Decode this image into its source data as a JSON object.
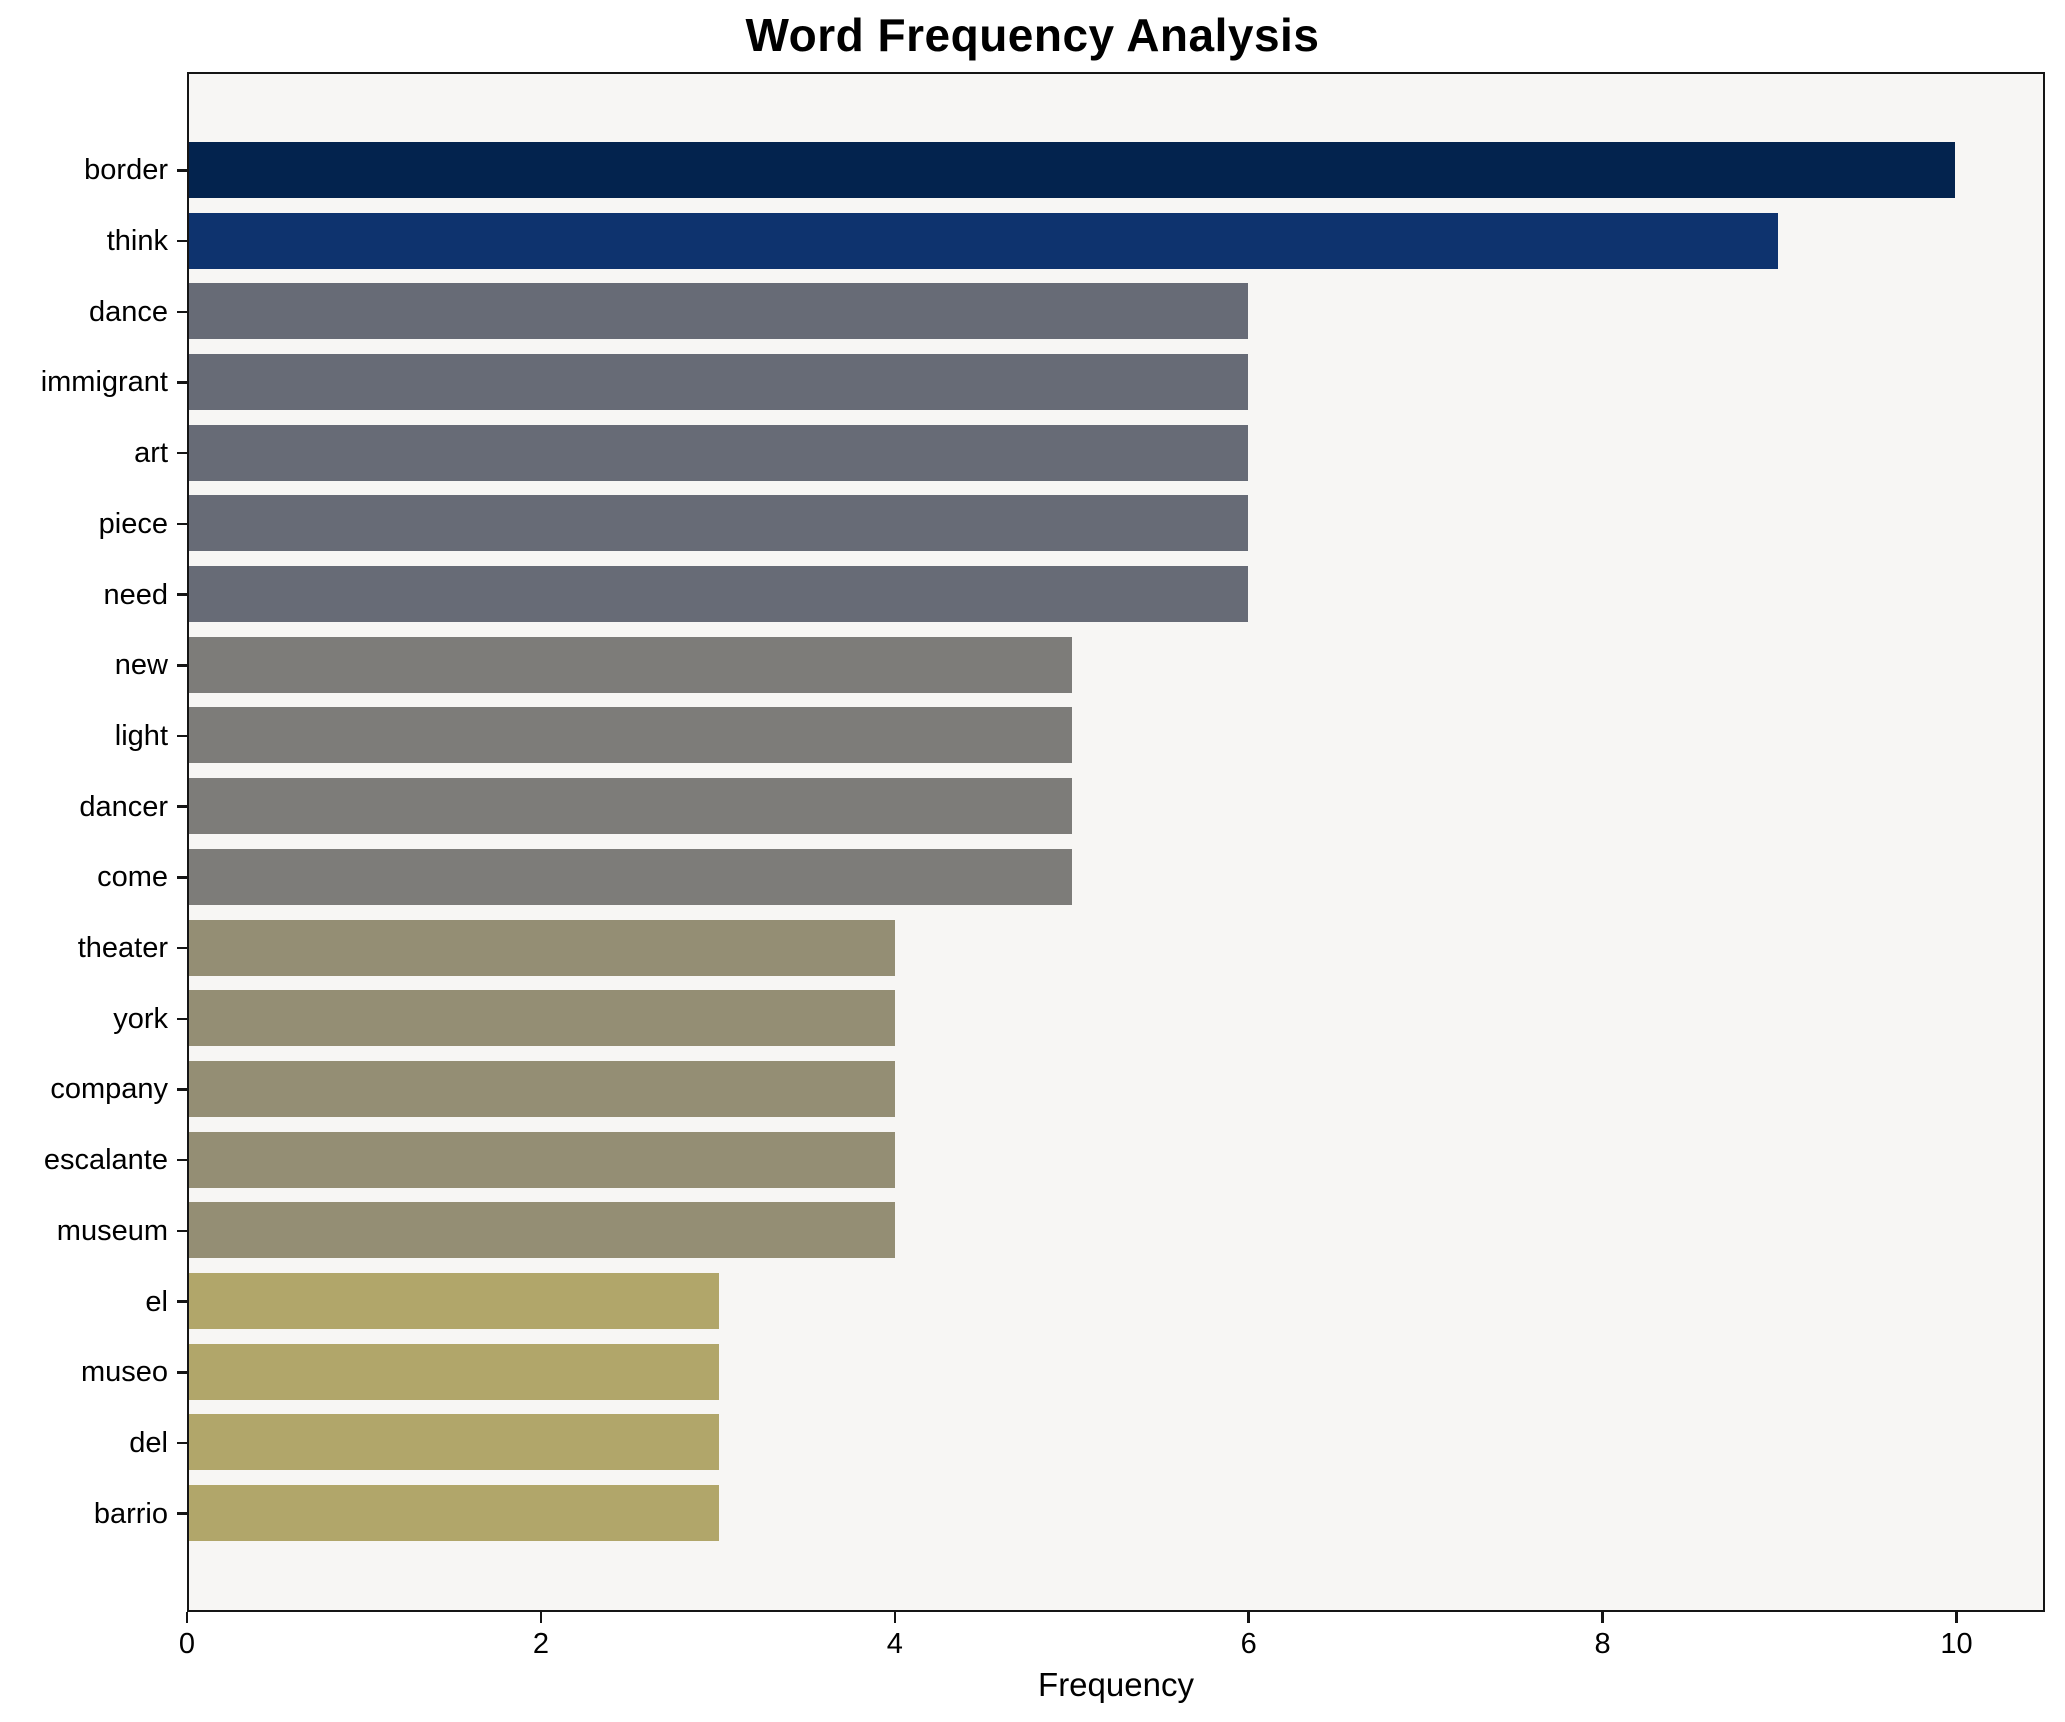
{
  "chart": {
    "title": "Word Frequency Analysis",
    "xlabel": "Frequency"
  },
  "chart_data": {
    "type": "bar",
    "orientation": "horizontal",
    "title": "Word Frequency Analysis",
    "xlabel": "Frequency",
    "ylabel": "",
    "categories": [
      "border",
      "think",
      "dance",
      "immigrant",
      "art",
      "piece",
      "need",
      "new",
      "light",
      "dancer",
      "come",
      "theater",
      "york",
      "company",
      "escalante",
      "museum",
      "el",
      "museo",
      "del",
      "barrio"
    ],
    "values": [
      10,
      9,
      6,
      6,
      6,
      6,
      6,
      5,
      5,
      5,
      5,
      4,
      4,
      4,
      4,
      4,
      3,
      3,
      3,
      3
    ],
    "bar_colors": [
      "#03234e",
      "#0e336e",
      "#676b76",
      "#676b76",
      "#676b76",
      "#676b76",
      "#676b76",
      "#7d7c79",
      "#7d7c79",
      "#7d7c79",
      "#7d7c79",
      "#948e74",
      "#948e74",
      "#948e74",
      "#948e74",
      "#948e74",
      "#b1a66a",
      "#b1a66a",
      "#b1a66a",
      "#b1a66a"
    ],
    "xlim": [
      0,
      10.5
    ],
    "xticks": [
      0,
      2,
      4,
      6,
      8,
      10
    ],
    "grid": false,
    "legend": "none",
    "plot_background": "#f7f6f4",
    "axis_color": "#151515"
  }
}
